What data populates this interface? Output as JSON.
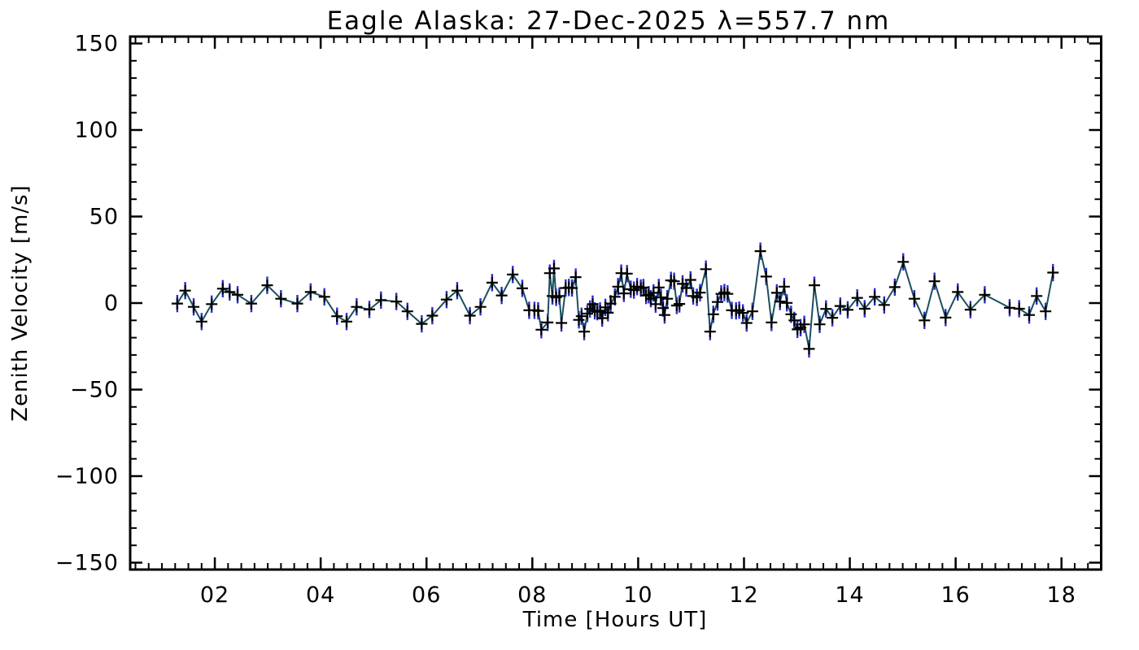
{
  "chart_data": {
    "type": "line",
    "title": "Eagle Alaska: 27-Dec-2025 λ=557.7 nm",
    "xlabel": "Time [Hours UT]",
    "ylabel": "Zenith Velocity [m/s]",
    "xlim": [
      0.4,
      18.75
    ],
    "ylim": [
      -150,
      150
    ],
    "x_major_ticks": [
      2,
      4,
      6,
      8,
      10,
      12,
      14,
      16,
      18
    ],
    "x_tick_labels": [
      "02",
      "04",
      "06",
      "08",
      "10",
      "12",
      "14",
      "16",
      "18"
    ],
    "x_minor_interval": 0.25,
    "y_major_ticks": [
      -150,
      -100,
      -50,
      0,
      50,
      100,
      150
    ],
    "y_tick_labels": [
      "−150",
      "−100",
      "−50",
      "0",
      "50",
      "100",
      "150"
    ],
    "y_minor_interval": 10,
    "grid": false,
    "legend": null,
    "marker_style": "plus",
    "error_bar_half_m_s": 5,
    "colors": {
      "line": "#1a4e60",
      "marker": "#000000",
      "error_bar": "#2b2bd6",
      "axis": "#000000",
      "background": "#ffffff"
    },
    "series": [
      {
        "name": "zenith velocity",
        "x": [
          1.29,
          1.44,
          1.6,
          1.75,
          1.94,
          2.15,
          2.28,
          2.43,
          2.69,
          2.99,
          3.25,
          3.56,
          3.81,
          4.07,
          4.31,
          4.49,
          4.68,
          4.92,
          5.14,
          5.43,
          5.64,
          5.91,
          6.11,
          6.38,
          6.58,
          6.82,
          7.02,
          7.24,
          7.42,
          7.63,
          7.81,
          7.94,
          8.04,
          8.11,
          8.17,
          8.29,
          8.33,
          8.38,
          8.41,
          8.45,
          8.51,
          8.55,
          8.63,
          8.69,
          8.75,
          8.82,
          8.88,
          8.93,
          8.98,
          9.04,
          9.09,
          9.14,
          9.18,
          9.23,
          9.28,
          9.32,
          9.38,
          9.43,
          9.48,
          9.56,
          9.62,
          9.68,
          9.73,
          9.79,
          9.86,
          9.92,
          9.98,
          10.05,
          10.1,
          10.15,
          10.2,
          10.24,
          10.29,
          10.33,
          10.39,
          10.43,
          10.47,
          10.5,
          10.55,
          10.62,
          10.68,
          10.73,
          10.78,
          10.84,
          10.91,
          10.99,
          11.04,
          11.11,
          11.17,
          11.28,
          11.36,
          11.42,
          11.5,
          11.57,
          11.63,
          11.69,
          11.77,
          11.85,
          11.91,
          11.98,
          12.05,
          12.16,
          12.31,
          12.42,
          12.52,
          12.62,
          12.68,
          12.76,
          12.81,
          12.89,
          12.95,
          13.01,
          13.07,
          13.14,
          13.23,
          13.33,
          13.43,
          13.55,
          13.67,
          13.82,
          13.96,
          14.14,
          14.28,
          14.47,
          14.65,
          14.85,
          15.01,
          15.22,
          15.41,
          15.6,
          15.81,
          16.04,
          16.28,
          16.55,
          17.02,
          17.2,
          17.39,
          17.53,
          17.7,
          17.84
        ],
        "y": [
          -0.3,
          7.2,
          -2.2,
          -10.7,
          -0.6,
          8.3,
          6.4,
          4.8,
          -0.3,
          10.3,
          2.5,
          -0.3,
          6.4,
          3.6,
          -7.6,
          -10.7,
          -2.2,
          -3.7,
          1.7,
          0.9,
          -4.8,
          -12.0,
          -7.3,
          2.0,
          7.2,
          -7.3,
          -2.2,
          11.8,
          4.4,
          16.5,
          8.5,
          -4.2,
          -4.2,
          -4.5,
          -15.4,
          -11.2,
          17.3,
          4.1,
          20.0,
          3.3,
          4.1,
          -11.5,
          8.7,
          9.0,
          8.7,
          15.0,
          -9.7,
          -7.6,
          -16.5,
          -6.1,
          -3.4,
          -0.6,
          -4.5,
          -5.0,
          -4.5,
          -8.7,
          -2.5,
          -5.6,
          -0.3,
          3.6,
          9.5,
          17.3,
          5.6,
          17.0,
          8.0,
          7.5,
          9.5,
          8.7,
          9.0,
          4.4,
          4.8,
          2.5,
          5.9,
          -0.6,
          9.0,
          3.3,
          -2.9,
          -6.9,
          2.5,
          13.1,
          12.6,
          -1.4,
          -0.5,
          11.1,
          8.7,
          13.4,
          4.1,
          3.3,
          6.0,
          19.6,
          -16.5,
          -6.5,
          0.6,
          5.3,
          6.1,
          5.3,
          -4.2,
          -4.5,
          -4.1,
          -5.7,
          -11.5,
          -4.8,
          30.0,
          15.3,
          -11.2,
          5.9,
          0.9,
          9.5,
          0.1,
          -6.5,
          -10.0,
          -15.2,
          -14.2,
          -12.3,
          -26.5,
          10.3,
          -12.3,
          -3.4,
          -8.5,
          -1.7,
          -3.9,
          3.0,
          -3.3,
          3.6,
          -1.1,
          9.2,
          23.8,
          2.5,
          -10.0,
          12.6,
          -8.4,
          6.4,
          -3.8,
          4.8,
          -2.7,
          -3.3,
          -6.9,
          4.1,
          -4.8,
          17.6
        ]
      }
    ]
  }
}
